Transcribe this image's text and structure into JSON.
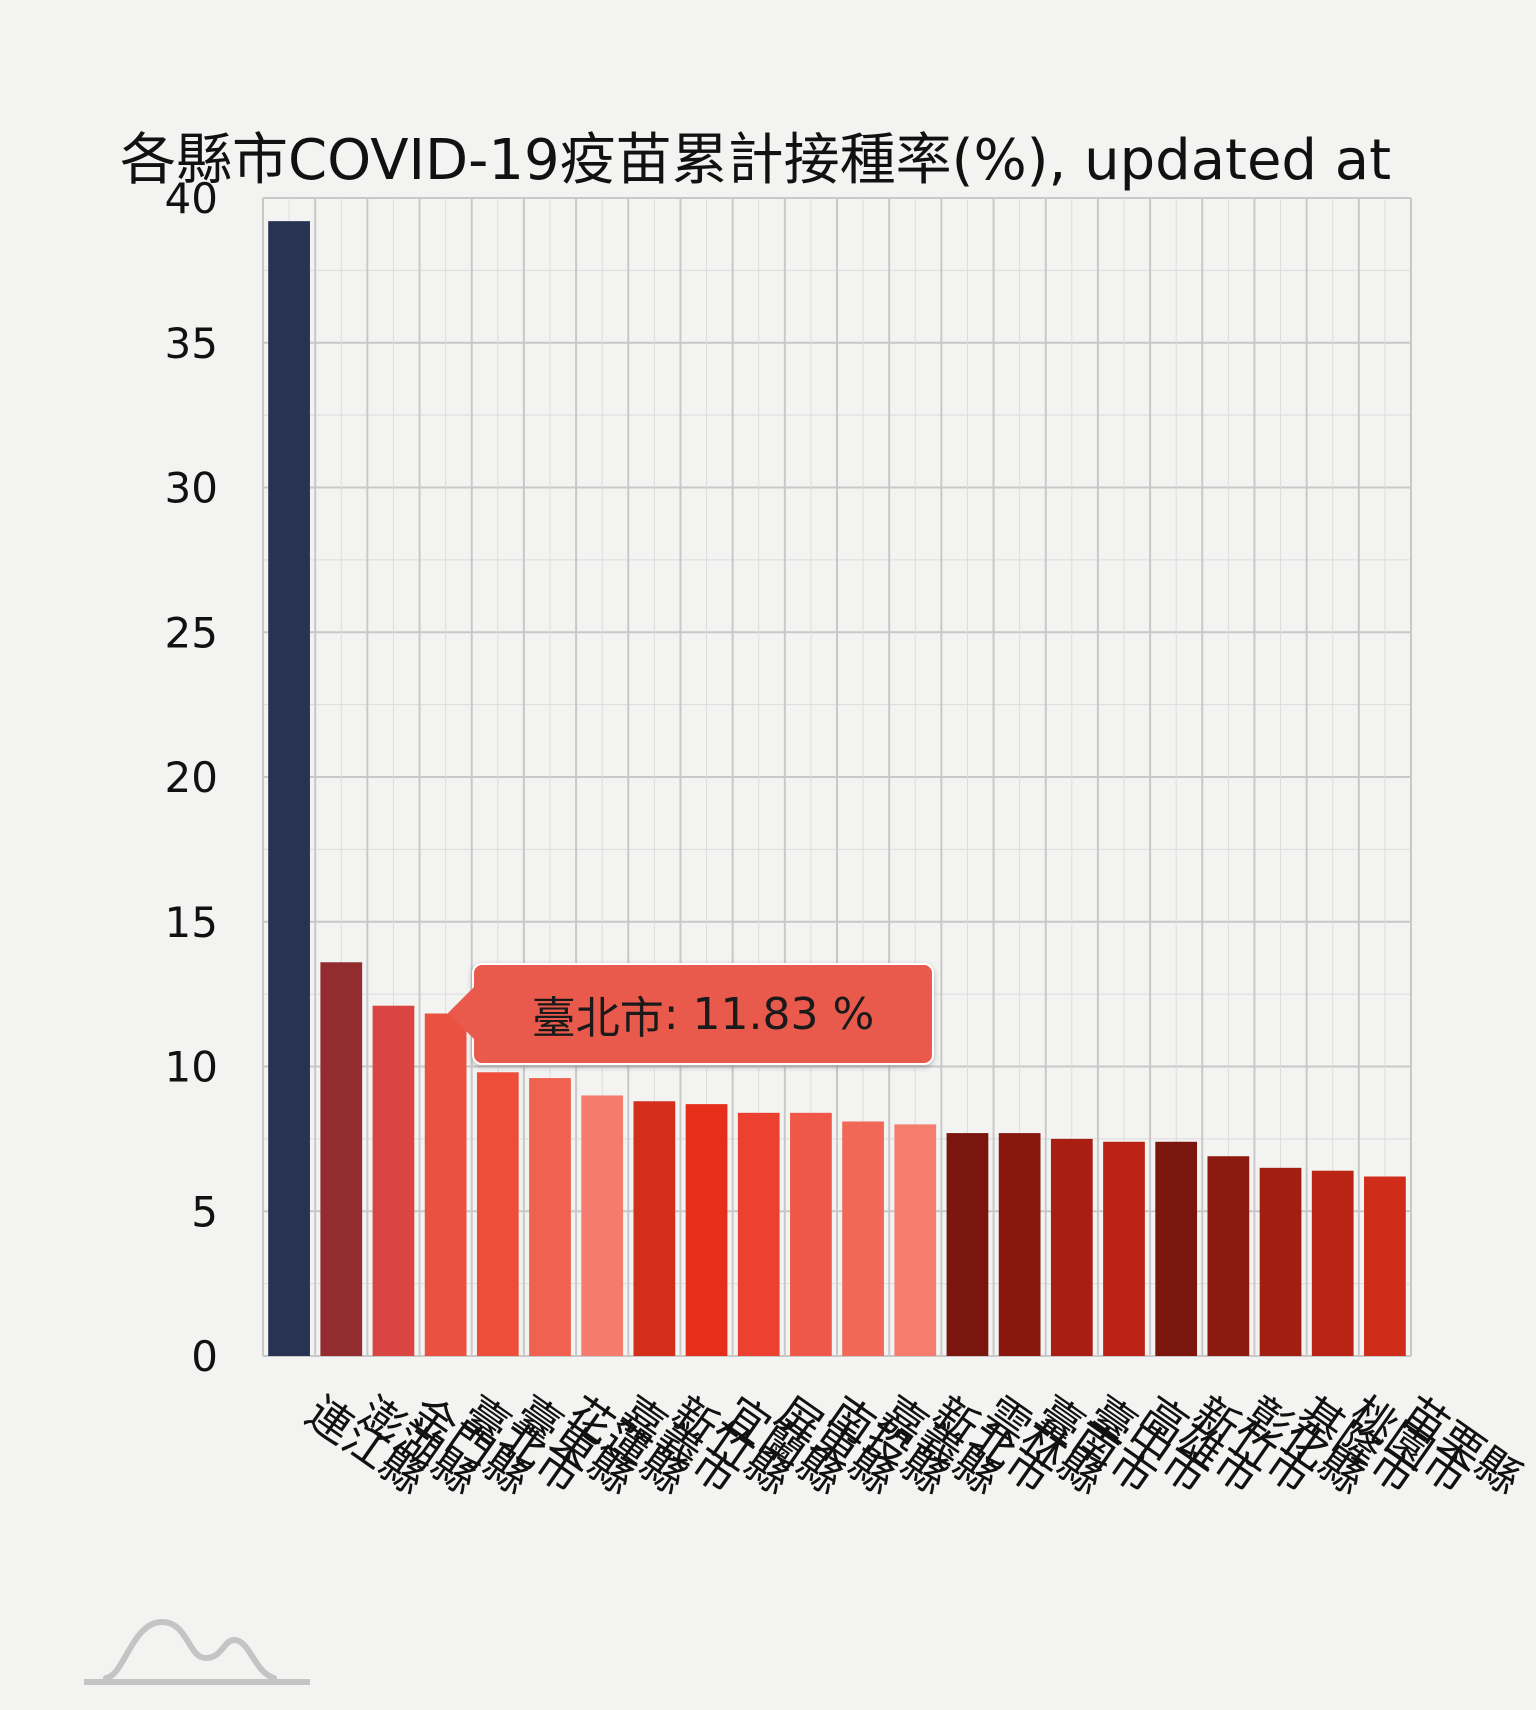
{
  "chart_data": {
    "type": "bar",
    "title": "各縣市COVID-19疫苗累計接種率(%), updated at",
    "xlabel": "",
    "ylabel": "",
    "ylim": [
      0,
      40
    ],
    "yticks": [
      0,
      5,
      10,
      15,
      20,
      25,
      30,
      35,
      40
    ],
    "grid": true,
    "categories": [
      "連江縣",
      "澎湖縣",
      "金門縣",
      "臺北市",
      "臺東縣",
      "花蓮縣",
      "嘉義市",
      "新竹縣",
      "宜蘭縣",
      "屏東縣",
      "南投縣",
      "嘉義縣",
      "新北市",
      "雲林縣",
      "臺南市",
      "臺中市",
      "高雄市",
      "新竹市",
      "彰化縣",
      "基隆市",
      "桃園市",
      "苗栗縣"
    ],
    "values": [
      39.2,
      13.6,
      12.1,
      11.83,
      9.8,
      9.6,
      9.0,
      8.8,
      8.7,
      8.4,
      8.4,
      8.1,
      8.0,
      7.7,
      7.7,
      7.5,
      7.4,
      7.4,
      6.9,
      6.5,
      6.4,
      6.2
    ],
    "colors": [
      "#283353",
      "#922c2e",
      "#d94543",
      "#ea5140",
      "#ee4d3a",
      "#f0624f",
      "#f47b6e",
      "#d42f1b",
      "#e62e1b",
      "#ec4131",
      "#ef5848",
      "#f26857",
      "#f47d70",
      "#7a160d",
      "#88180e",
      "#a91e12",
      "#bc2316",
      "#7a160d",
      "#8c1b0f",
      "#a11e12",
      "#b92415",
      "#d02c1a"
    ]
  },
  "tooltip": {
    "label": "臺北市",
    "value": "11.83",
    "unit": "%"
  }
}
